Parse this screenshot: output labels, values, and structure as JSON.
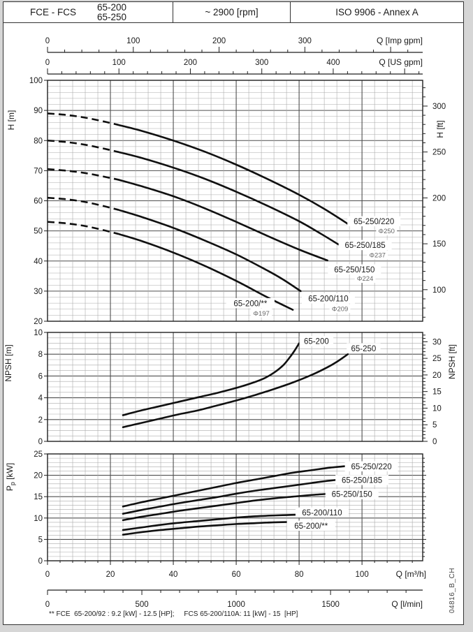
{
  "header": {
    "product": "FCE - FCS",
    "models": [
      "65-200",
      "65-250"
    ],
    "speed": "~ 2900 [rpm]",
    "standard": "ISO 9906 - Annex A"
  },
  "footnote": "** FCE  65-200/92 : 9.2 [kW] - 12.5 [HP];     FCS 65-200/110A: 11 [kW] - 15  [HP]",
  "doc_code": "04816_B_CH",
  "colors": {
    "curve": "#101010",
    "grid_minor": "#ababab",
    "grid_major": "#4f4f4f",
    "frame": "#1f1f1f",
    "text": "#1a1a1a",
    "muted": "#666666"
  },
  "axes": {
    "top_axes": [
      {
        "label": "Q [Imp gpm]",
        "ticks": [
          0,
          100,
          200,
          300
        ],
        "minor_step": 20,
        "units_per_m3h": 3.66615
      },
      {
        "label": "Q [US gpm]",
        "ticks": [
          0,
          100,
          200,
          300,
          400
        ],
        "minor_step": 20,
        "units_per_m3h": 4.40287
      }
    ],
    "bottom_axes": [
      {
        "label": "Q [m³/h]",
        "ticks": [
          0,
          20,
          40,
          60,
          80,
          100
        ],
        "minor_step": 4,
        "units_per_m3h": 1
      },
      {
        "label": "Q [l/min]",
        "ticks": [
          0,
          500,
          1000,
          1500
        ],
        "minor_step": 100,
        "units_per_m3h": 16.6667
      }
    ]
  },
  "chart_data": [
    {
      "type": "line",
      "name": "head",
      "x_range_m3h": [
        0,
        119.3
      ],
      "ylabel_left": "H [m]",
      "ylim_left": [
        20,
        100
      ],
      "ytick_step_left": 10,
      "ylabel_right": "H [ft]",
      "yticks_right_labeled": [
        100,
        150,
        200,
        250,
        300
      ],
      "ft_per_m": 3.28084,
      "dashed_note": "dashed = low-flow extrapolated region",
      "series": [
        {
          "name": "65-250/220",
          "impeller": "Φ250",
          "dashed_points": [
            [
              0,
              89
            ],
            [
              6,
              88.5
            ],
            [
              12,
              87.6
            ],
            [
              18,
              86.3
            ],
            [
              22.5,
              85.2
            ]
          ],
          "points": [
            [
              22.5,
              85.2
            ],
            [
              30,
              83.2
            ],
            [
              40,
              80
            ],
            [
              50,
              76.3
            ],
            [
              60,
              72
            ],
            [
              70,
              67.2
            ],
            [
              80,
              62
            ],
            [
              88,
              57.3
            ],
            [
              96,
              52
            ]
          ],
          "label_at": [
            103.8,
            53.2
          ],
          "impeller_label_at": [
            107.8,
            50
          ]
        },
        {
          "name": "65-250/185",
          "impeller": "Φ237",
          "dashed_points": [
            [
              0,
              80
            ],
            [
              6,
              79.5
            ],
            [
              12,
              78.6
            ],
            [
              18,
              77.3
            ],
            [
              22.5,
              76.2
            ]
          ],
          "points": [
            [
              22.5,
              76.2
            ],
            [
              30,
              74.2
            ],
            [
              40,
              71
            ],
            [
              50,
              67.3
            ],
            [
              60,
              63
            ],
            [
              70,
              58.3
            ],
            [
              80,
              53.2
            ],
            [
              87,
              49
            ],
            [
              92.5,
              45.5
            ]
          ],
          "label_at": [
            101,
            45.3
          ],
          "impeller_label_at": [
            104.9,
            42
          ]
        },
        {
          "name": "65-250/150",
          "impeller": "Φ224",
          "dashed_points": [
            [
              0,
              70.5
            ],
            [
              6,
              70
            ],
            [
              12,
              69.2
            ],
            [
              18,
              68
            ],
            [
              22.5,
              67
            ]
          ],
          "points": [
            [
              22.5,
              67
            ],
            [
              30,
              64.8
            ],
            [
              40,
              61.5
            ],
            [
              50,
              57.5
            ],
            [
              60,
              53
            ],
            [
              70,
              48.3
            ],
            [
              80,
              43.8
            ],
            [
              89,
              40.2
            ]
          ],
          "label_at": [
            97.6,
            37.2
          ],
          "impeller_label_at": [
            101,
            34.2
          ]
        },
        {
          "name": "65-200/110",
          "impeller": "Φ209",
          "dashed_points": [
            [
              0,
              61
            ],
            [
              6,
              60.5
            ],
            [
              12,
              59.6
            ],
            [
              18,
              58.2
            ],
            [
              22.5,
              57
            ]
          ],
          "points": [
            [
              22.5,
              57
            ],
            [
              30,
              54.6
            ],
            [
              40,
              51
            ],
            [
              50,
              46.8
            ],
            [
              60,
              42.2
            ],
            [
              70,
              36.8
            ],
            [
              75,
              33.8
            ],
            [
              80.5,
              30
            ]
          ],
          "label_at": [
            89.3,
            27.6
          ],
          "impeller_label_at": [
            93,
            24.2
          ]
        },
        {
          "name": "65-200/**",
          "impeller": "Φ197",
          "dashed_points": [
            [
              0,
              53
            ],
            [
              6,
              52.5
            ],
            [
              12,
              51.6
            ],
            [
              18,
              50.2
            ],
            [
              22.5,
              49
            ]
          ],
          "points": [
            [
              22.5,
              49
            ],
            [
              30,
              46.6
            ],
            [
              40,
              42.8
            ],
            [
              50,
              38.4
            ],
            [
              60,
              33.4
            ],
            [
              70,
              27.9
            ],
            [
              78,
              23.8
            ]
          ],
          "label_at": [
            64.5,
            26
          ],
          "impeller_label_at": [
            68,
            22.7
          ]
        }
      ]
    },
    {
      "type": "line",
      "name": "npsh",
      "ylabel_left": "NPSH [m]",
      "ylim_left": [
        0,
        10
      ],
      "ytick_step_left": 2,
      "ylabel_right": "NPSH [ft]",
      "yticks_right_labeled": [
        0,
        5,
        10,
        15,
        20,
        25,
        30
      ],
      "ft_per_m": 3.28084,
      "series": [
        {
          "name": "65-200",
          "points": [
            [
              24,
              2.4
            ],
            [
              30,
              2.85
            ],
            [
              36,
              3.25
            ],
            [
              42,
              3.65
            ],
            [
              48,
              4.05
            ],
            [
              54,
              4.45
            ],
            [
              60,
              4.9
            ],
            [
              65,
              5.35
            ],
            [
              69,
              5.8
            ],
            [
              72,
              6.3
            ],
            [
              75,
              7
            ],
            [
              77,
              7.7
            ],
            [
              78.5,
              8.3
            ],
            [
              80,
              9
            ]
          ],
          "label_at": [
            85.5,
            9.2
          ]
        },
        {
          "name": "65-250",
          "points": [
            [
              24,
              1.3
            ],
            [
              30,
              1.7
            ],
            [
              36,
              2.1
            ],
            [
              42,
              2.5
            ],
            [
              48,
              2.85
            ],
            [
              54,
              3.3
            ],
            [
              60,
              3.75
            ],
            [
              66,
              4.25
            ],
            [
              72,
              4.8
            ],
            [
              78,
              5.4
            ],
            [
              84,
              6.1
            ],
            [
              89,
              6.8
            ],
            [
              92,
              7.3
            ],
            [
              95.5,
              8
            ]
          ],
          "label_at": [
            100.5,
            8.55
          ]
        }
      ]
    },
    {
      "type": "line",
      "name": "power",
      "ylabel_left": "Pp [kW]",
      "ylabel_left_subscript": true,
      "ylim_left": [
        0,
        25
      ],
      "ytick_step_left": 5,
      "series": [
        {
          "name": "65-250/220",
          "points": [
            [
              24,
              12.7
            ],
            [
              30,
              13.7
            ],
            [
              36,
              14.6
            ],
            [
              42,
              15.5
            ],
            [
              48,
              16.4
            ],
            [
              54,
              17.3
            ],
            [
              60,
              18.2
            ],
            [
              66,
              19
            ],
            [
              72,
              19.8
            ],
            [
              78,
              20.6
            ],
            [
              84,
              21.2
            ],
            [
              90,
              21.8
            ],
            [
              96,
              22.2
            ]
          ],
          "label_at": [
            103,
            22.1
          ]
        },
        {
          "name": "65-250/185",
          "points": [
            [
              24,
              11
            ],
            [
              30,
              11.9
            ],
            [
              36,
              12.7
            ],
            [
              42,
              13.5
            ],
            [
              48,
              14.2
            ],
            [
              54,
              14.9
            ],
            [
              60,
              15.7
            ],
            [
              66,
              16.4
            ],
            [
              72,
              17
            ],
            [
              78,
              17.6
            ],
            [
              84,
              18.2
            ],
            [
              89,
              18.7
            ],
            [
              93,
              19
            ]
          ],
          "label_at": [
            100,
            18.9
          ]
        },
        {
          "name": "65-250/150",
          "points": [
            [
              24,
              9.5
            ],
            [
              30,
              10.3
            ],
            [
              36,
              11
            ],
            [
              42,
              11.7
            ],
            [
              48,
              12.3
            ],
            [
              54,
              12.9
            ],
            [
              60,
              13.5
            ],
            [
              66,
              14.1
            ],
            [
              72,
              14.6
            ],
            [
              78,
              15
            ],
            [
              84,
              15.4
            ],
            [
              90,
              15.7
            ]
          ],
          "label_at": [
            96.8,
            15.6
          ]
        },
        {
          "name": "65-200/110",
          "points": [
            [
              24,
              7.2
            ],
            [
              30,
              7.8
            ],
            [
              36,
              8.4
            ],
            [
              42,
              8.9
            ],
            [
              48,
              9.3
            ],
            [
              54,
              9.7
            ],
            [
              60,
              10.1
            ],
            [
              66,
              10.4
            ],
            [
              72,
              10.6
            ],
            [
              76,
              10.7
            ],
            [
              80,
              10.8
            ]
          ],
          "label_at": [
            87.3,
            11.3
          ]
        },
        {
          "name": "65-200/**",
          "points": [
            [
              24,
              6.1
            ],
            [
              30,
              6.7
            ],
            [
              36,
              7.2
            ],
            [
              42,
              7.6
            ],
            [
              48,
              8
            ],
            [
              54,
              8.3
            ],
            [
              60,
              8.6
            ],
            [
              66,
              8.8
            ],
            [
              72,
              9
            ],
            [
              78,
              9.1
            ]
          ],
          "label_at": [
            83.8,
            8.2
          ]
        }
      ]
    }
  ]
}
